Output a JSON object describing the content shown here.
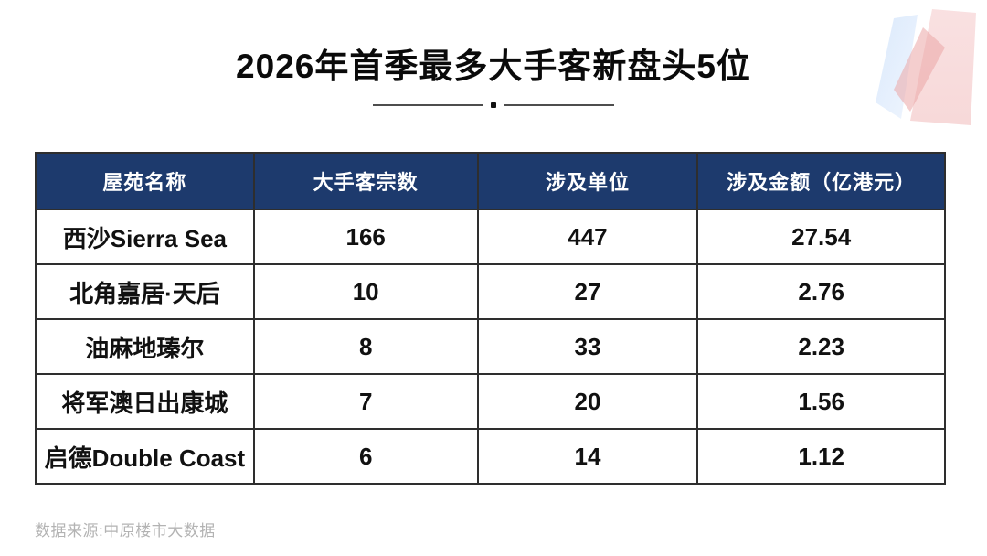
{
  "chart_data": {
    "type": "table",
    "title": "2026年首季最多大手客新盘头5位",
    "columns": [
      "屋苑名称",
      "大手客宗数",
      "涉及单位",
      "涉及金额（亿港元）"
    ],
    "rows": [
      [
        "西沙Sierra Sea",
        166,
        447,
        27.54
      ],
      [
        "北角嘉居·天后",
        10,
        27,
        2.76
      ],
      [
        "油麻地瑧尔",
        8,
        33,
        2.23
      ],
      [
        "将军澳日出康城",
        7,
        20,
        1.56
      ],
      [
        "启德Double Coast",
        6,
        14,
        1.12
      ]
    ],
    "source": "数据来源:中原楼市大数据",
    "legend_position": "none",
    "grid": "on"
  },
  "icons": {
    "brand_logo": "brand-logo-mark"
  },
  "colors": {
    "header_bg": "#1d3a6d",
    "header_text": "#ffffff",
    "body_text": "#111111",
    "border": "#2e2e2e",
    "source_text": "#b3b3b3",
    "logo_blue": "#b9d3f5",
    "logo_pink": "#f6cdd0",
    "logo_red": "#eba6a6"
  }
}
